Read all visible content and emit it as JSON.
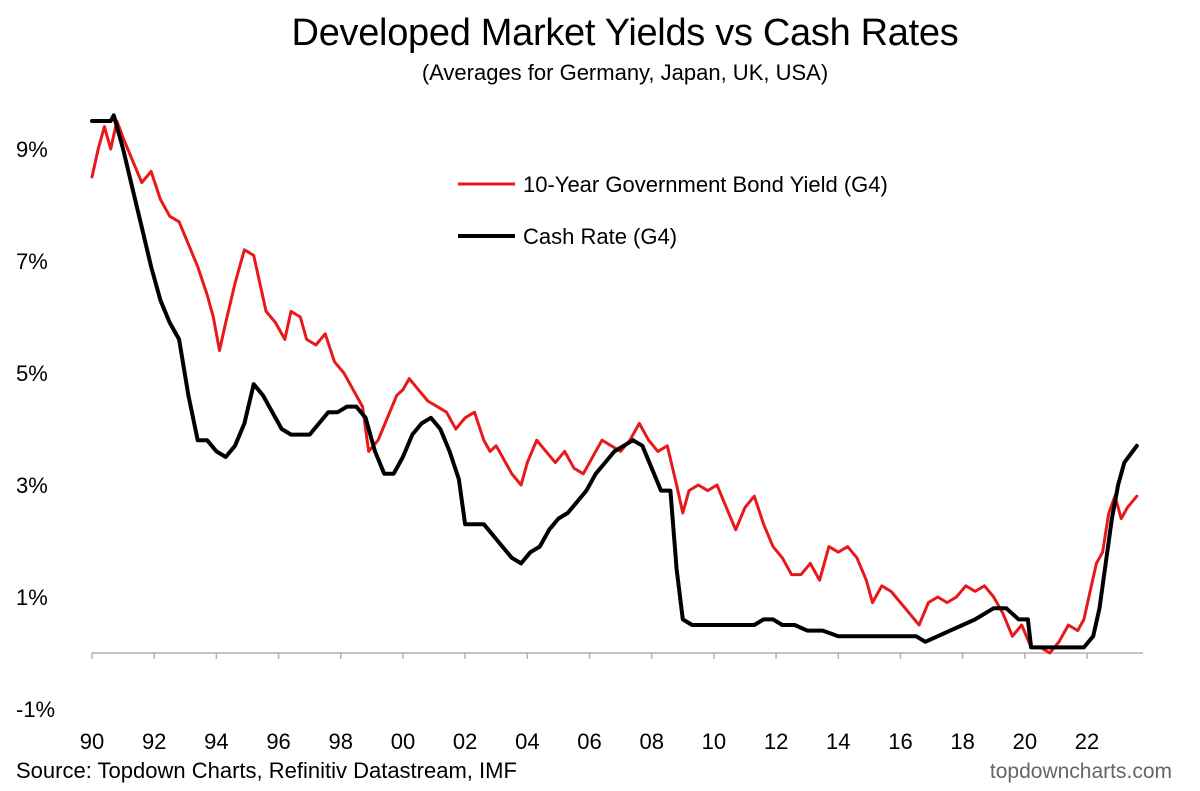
{
  "chart_data": {
    "type": "line",
    "title": "Developed Market Yields vs Cash Rates",
    "subtitle": "(Averages for Germany, Japan, UK, USA)",
    "xlabel": "",
    "ylabel": "",
    "xlim": [
      1990,
      2023.8
    ],
    "ylim": [
      -1,
      10
    ],
    "x_ticks": [
      1990,
      1992,
      1994,
      1996,
      1998,
      2000,
      2002,
      2004,
      2006,
      2008,
      2010,
      2012,
      2014,
      2016,
      2018,
      2020,
      2022
    ],
    "x_tick_labels": [
      "90",
      "92",
      "94",
      "96",
      "98",
      "00",
      "02",
      "04",
      "06",
      "08",
      "10",
      "12",
      "14",
      "16",
      "18",
      "20",
      "22"
    ],
    "y_ticks": [
      9,
      7,
      5,
      3,
      1,
      -1
    ],
    "y_tick_labels": [
      "9%",
      "7%",
      "5%",
      "3%",
      "1%",
      "-1%"
    ],
    "legend_position": "upper-right",
    "series": [
      {
        "name": "10-Year Government Bond Yield (G4)",
        "color": "#e8191b",
        "points": [
          [
            1990.0,
            8.5
          ],
          [
            1990.2,
            9.0
          ],
          [
            1990.4,
            9.4
          ],
          [
            1990.6,
            9.0
          ],
          [
            1990.8,
            9.5
          ],
          [
            1991.0,
            9.2
          ],
          [
            1991.3,
            8.8
          ],
          [
            1991.6,
            8.4
          ],
          [
            1991.9,
            8.6
          ],
          [
            1992.2,
            8.1
          ],
          [
            1992.5,
            7.8
          ],
          [
            1992.8,
            7.7
          ],
          [
            1993.1,
            7.3
          ],
          [
            1993.4,
            6.9
          ],
          [
            1993.7,
            6.4
          ],
          [
            1993.9,
            6.0
          ],
          [
            1994.1,
            5.4
          ],
          [
            1994.3,
            5.9
          ],
          [
            1994.6,
            6.6
          ],
          [
            1994.9,
            7.2
          ],
          [
            1995.2,
            7.1
          ],
          [
            1995.4,
            6.6
          ],
          [
            1995.6,
            6.1
          ],
          [
            1995.9,
            5.9
          ],
          [
            1996.2,
            5.6
          ],
          [
            1996.4,
            6.1
          ],
          [
            1996.7,
            6.0
          ],
          [
            1996.9,
            5.6
          ],
          [
            1997.2,
            5.5
          ],
          [
            1997.5,
            5.7
          ],
          [
            1997.8,
            5.2
          ],
          [
            1998.1,
            5.0
          ],
          [
            1998.4,
            4.7
          ],
          [
            1998.7,
            4.4
          ],
          [
            1998.9,
            3.6
          ],
          [
            1999.2,
            3.8
          ],
          [
            1999.5,
            4.2
          ],
          [
            1999.8,
            4.6
          ],
          [
            2000.0,
            4.7
          ],
          [
            2000.2,
            4.9
          ],
          [
            2000.5,
            4.7
          ],
          [
            2000.8,
            4.5
          ],
          [
            2001.1,
            4.4
          ],
          [
            2001.4,
            4.3
          ],
          [
            2001.7,
            4.0
          ],
          [
            2002.0,
            4.2
          ],
          [
            2002.3,
            4.3
          ],
          [
            2002.6,
            3.8
          ],
          [
            2002.8,
            3.6
          ],
          [
            2003.0,
            3.7
          ],
          [
            2003.3,
            3.4
          ],
          [
            2003.5,
            3.2
          ],
          [
            2003.8,
            3.0
          ],
          [
            2004.0,
            3.4
          ],
          [
            2004.3,
            3.8
          ],
          [
            2004.6,
            3.6
          ],
          [
            2004.9,
            3.4
          ],
          [
            2005.2,
            3.6
          ],
          [
            2005.5,
            3.3
          ],
          [
            2005.8,
            3.2
          ],
          [
            2006.1,
            3.5
          ],
          [
            2006.4,
            3.8
          ],
          [
            2006.7,
            3.7
          ],
          [
            2007.0,
            3.6
          ],
          [
            2007.3,
            3.8
          ],
          [
            2007.6,
            4.1
          ],
          [
            2007.9,
            3.8
          ],
          [
            2008.2,
            3.6
          ],
          [
            2008.5,
            3.7
          ],
          [
            2008.8,
            3.0
          ],
          [
            2009.0,
            2.5
          ],
          [
            2009.2,
            2.9
          ],
          [
            2009.5,
            3.0
          ],
          [
            2009.8,
            2.9
          ],
          [
            2010.1,
            3.0
          ],
          [
            2010.4,
            2.6
          ],
          [
            2010.7,
            2.2
          ],
          [
            2011.0,
            2.6
          ],
          [
            2011.3,
            2.8
          ],
          [
            2011.6,
            2.3
          ],
          [
            2011.9,
            1.9
          ],
          [
            2012.2,
            1.7
          ],
          [
            2012.5,
            1.4
          ],
          [
            2012.8,
            1.4
          ],
          [
            2013.1,
            1.6
          ],
          [
            2013.4,
            1.3
          ],
          [
            2013.7,
            1.9
          ],
          [
            2014.0,
            1.8
          ],
          [
            2014.3,
            1.9
          ],
          [
            2014.6,
            1.7
          ],
          [
            2014.9,
            1.3
          ],
          [
            2015.1,
            0.9
          ],
          [
            2015.4,
            1.2
          ],
          [
            2015.7,
            1.1
          ],
          [
            2016.0,
            0.9
          ],
          [
            2016.3,
            0.7
          ],
          [
            2016.6,
            0.5
          ],
          [
            2016.9,
            0.9
          ],
          [
            2017.2,
            1.0
          ],
          [
            2017.5,
            0.9
          ],
          [
            2017.8,
            1.0
          ],
          [
            2018.1,
            1.2
          ],
          [
            2018.4,
            1.1
          ],
          [
            2018.7,
            1.2
          ],
          [
            2019.0,
            1.0
          ],
          [
            2019.3,
            0.7
          ],
          [
            2019.6,
            0.3
          ],
          [
            2019.9,
            0.5
          ],
          [
            2020.2,
            0.1
          ],
          [
            2020.5,
            0.1
          ],
          [
            2020.8,
            0.0
          ],
          [
            2021.1,
            0.2
          ],
          [
            2021.4,
            0.5
          ],
          [
            2021.7,
            0.4
          ],
          [
            2021.9,
            0.6
          ],
          [
            2022.1,
            1.1
          ],
          [
            2022.3,
            1.6
          ],
          [
            2022.5,
            1.8
          ],
          [
            2022.7,
            2.5
          ],
          [
            2022.9,
            2.8
          ],
          [
            2023.1,
            2.4
          ],
          [
            2023.3,
            2.6
          ],
          [
            2023.6,
            2.8
          ]
        ]
      },
      {
        "name": "Cash Rate (G4)",
        "color": "#000000",
        "points": [
          [
            1990.0,
            9.5
          ],
          [
            1990.6,
            9.5
          ],
          [
            1990.7,
            9.6
          ],
          [
            1991.0,
            9.0
          ],
          [
            1991.3,
            8.3
          ],
          [
            1991.6,
            7.6
          ],
          [
            1991.9,
            6.9
          ],
          [
            1992.2,
            6.3
          ],
          [
            1992.5,
            5.9
          ],
          [
            1992.8,
            5.6
          ],
          [
            1993.1,
            4.6
          ],
          [
            1993.4,
            3.8
          ],
          [
            1993.7,
            3.8
          ],
          [
            1994.0,
            3.6
          ],
          [
            1994.3,
            3.5
          ],
          [
            1994.6,
            3.7
          ],
          [
            1994.9,
            4.1
          ],
          [
            1995.2,
            4.8
          ],
          [
            1995.5,
            4.6
          ],
          [
            1995.8,
            4.3
          ],
          [
            1996.1,
            4.0
          ],
          [
            1996.4,
            3.9
          ],
          [
            1996.7,
            3.9
          ],
          [
            1997.0,
            3.9
          ],
          [
            1997.3,
            4.1
          ],
          [
            1997.6,
            4.3
          ],
          [
            1997.9,
            4.3
          ],
          [
            1998.2,
            4.4
          ],
          [
            1998.5,
            4.4
          ],
          [
            1998.8,
            4.2
          ],
          [
            1999.1,
            3.6
          ],
          [
            1999.4,
            3.2
          ],
          [
            1999.7,
            3.2
          ],
          [
            2000.0,
            3.5
          ],
          [
            2000.3,
            3.9
          ],
          [
            2000.6,
            4.1
          ],
          [
            2000.9,
            4.2
          ],
          [
            2001.2,
            4.0
          ],
          [
            2001.5,
            3.6
          ],
          [
            2001.8,
            3.1
          ],
          [
            2002.0,
            2.3
          ],
          [
            2002.3,
            2.3
          ],
          [
            2002.6,
            2.3
          ],
          [
            2002.9,
            2.1
          ],
          [
            2003.2,
            1.9
          ],
          [
            2003.5,
            1.7
          ],
          [
            2003.8,
            1.6
          ],
          [
            2004.1,
            1.8
          ],
          [
            2004.4,
            1.9
          ],
          [
            2004.7,
            2.2
          ],
          [
            2005.0,
            2.4
          ],
          [
            2005.3,
            2.5
          ],
          [
            2005.6,
            2.7
          ],
          [
            2005.9,
            2.9
          ],
          [
            2006.2,
            3.2
          ],
          [
            2006.5,
            3.4
          ],
          [
            2006.8,
            3.6
          ],
          [
            2007.1,
            3.7
          ],
          [
            2007.4,
            3.8
          ],
          [
            2007.7,
            3.7
          ],
          [
            2008.0,
            3.3
          ],
          [
            2008.3,
            2.9
          ],
          [
            2008.6,
            2.9
          ],
          [
            2008.8,
            1.5
          ],
          [
            2009.0,
            0.6
          ],
          [
            2009.3,
            0.5
          ],
          [
            2009.6,
            0.5
          ],
          [
            2010.0,
            0.5
          ],
          [
            2010.5,
            0.5
          ],
          [
            2011.0,
            0.5
          ],
          [
            2011.3,
            0.5
          ],
          [
            2011.6,
            0.6
          ],
          [
            2011.9,
            0.6
          ],
          [
            2012.2,
            0.5
          ],
          [
            2012.6,
            0.5
          ],
          [
            2013.0,
            0.4
          ],
          [
            2013.5,
            0.4
          ],
          [
            2014.0,
            0.3
          ],
          [
            2014.5,
            0.3
          ],
          [
            2015.0,
            0.3
          ],
          [
            2015.5,
            0.3
          ],
          [
            2016.0,
            0.3
          ],
          [
            2016.5,
            0.3
          ],
          [
            2016.8,
            0.2
          ],
          [
            2017.2,
            0.3
          ],
          [
            2017.6,
            0.4
          ],
          [
            2018.0,
            0.5
          ],
          [
            2018.4,
            0.6
          ],
          [
            2018.7,
            0.7
          ],
          [
            2019.0,
            0.8
          ],
          [
            2019.4,
            0.8
          ],
          [
            2019.8,
            0.6
          ],
          [
            2020.1,
            0.6
          ],
          [
            2020.2,
            0.1
          ],
          [
            2020.5,
            0.1
          ],
          [
            2021.0,
            0.1
          ],
          [
            2021.5,
            0.1
          ],
          [
            2021.9,
            0.1
          ],
          [
            2022.2,
            0.3
          ],
          [
            2022.4,
            0.8
          ],
          [
            2022.6,
            1.6
          ],
          [
            2022.8,
            2.4
          ],
          [
            2023.0,
            3.0
          ],
          [
            2023.2,
            3.4
          ],
          [
            2023.6,
            3.7
          ]
        ]
      }
    ]
  },
  "source": "Source: Topdown Charts, Refinitiv Datastream, IMF",
  "watermark": "topdowncharts.com"
}
